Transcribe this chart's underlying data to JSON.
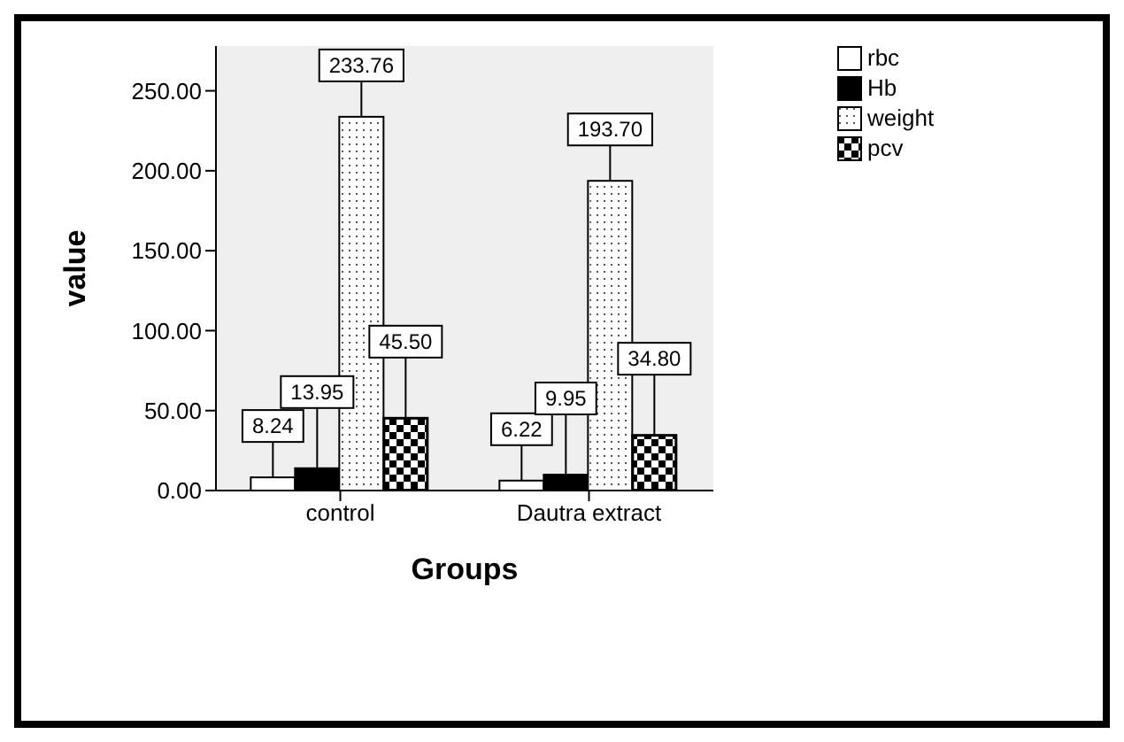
{
  "chart_data": {
    "type": "bar",
    "xlabel": "Groups",
    "ylabel": "value",
    "categories": [
      "control",
      "Dautra extract"
    ],
    "series": [
      {
        "name": "rbc",
        "color": "#ffffff",
        "values": [
          8.24,
          6.22
        ],
        "value_labels": [
          "8.24",
          "6.22"
        ]
      },
      {
        "name": "Hb",
        "color": "#000000",
        "values": [
          13.95,
          9.95
        ],
        "value_labels": [
          "13.95",
          "9.95"
        ]
      },
      {
        "name": "weight",
        "color": "#ffffff",
        "values": [
          233.76,
          193.7
        ],
        "value_labels": [
          "233.76",
          "193.70"
        ]
      },
      {
        "name": "pcv",
        "color": "#000000",
        "values": [
          45.5,
          34.8
        ],
        "value_labels": [
          "45.50",
          "34.80"
        ]
      }
    ],
    "ylim": [
      0,
      278
    ],
    "yticks": [
      {
        "value": 0,
        "label": "0.00"
      },
      {
        "value": 50,
        "label": "50.00"
      },
      {
        "value": 100,
        "label": "100.00"
      },
      {
        "value": 150,
        "label": "150.00"
      },
      {
        "value": 200,
        "label": "200.00"
      },
      {
        "value": 250,
        "label": "250.00"
      }
    ],
    "grid": false,
    "legend": "top right"
  }
}
